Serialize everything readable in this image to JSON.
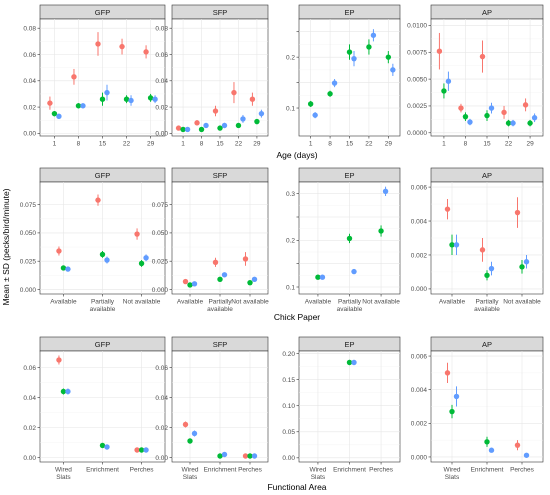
{
  "figure": {
    "y_axis_title": "Mean ± SD (pecks/bird/minute)",
    "colors": {
      "red": "#F8766D",
      "green": "#00BA38",
      "blue": "#619CFF"
    }
  },
  "chart_data": [
    {
      "type": "scatter",
      "row": 0,
      "col": 0,
      "panel": "GFP",
      "categories": [
        "1",
        "8",
        "15",
        "22",
        "29"
      ],
      "xlabel": "Age (days)",
      "ylim": [
        -0.002,
        0.087
      ],
      "yticks": [
        0,
        0.02,
        0.04,
        0.06,
        0.08
      ],
      "yticklabels": [
        "0.00",
        "0.02",
        "0.04",
        "0.06",
        "0.08"
      ],
      "series": [
        {
          "values": [
            0.023,
            0.043,
            0.068,
            0.066,
            0.062
          ],
          "sd": [
            0.005,
            0.006,
            0.009,
            0.006,
            0.005
          ],
          "color": "red"
        },
        {
          "values": [
            0.015,
            0.021,
            0.026,
            0.026,
            0.027
          ],
          "sd": [
            0.002,
            0.002,
            0.005,
            0.003,
            0.003
          ],
          "color": "green"
        },
        {
          "values": [
            0.013,
            0.021,
            0.031,
            0.025,
            0.026
          ],
          "sd": [
            0.002,
            0.002,
            0.006,
            0.004,
            0.003
          ],
          "color": "blue"
        }
      ]
    },
    {
      "type": "scatter",
      "row": 0,
      "col": 1,
      "panel": "SFP",
      "categories": [
        "1",
        "8",
        "15",
        "22",
        "29"
      ],
      "xlabel": "Age (days)",
      "ylim": [
        -0.002,
        0.087
      ],
      "yticks": [
        0,
        0.02,
        0.04,
        0.06,
        0.08
      ],
      "yticklabels": [
        "0.00",
        "0.02",
        "0.04",
        "0.06",
        "0.08"
      ],
      "series": [
        {
          "values": [
            0.004,
            0.008,
            0.017,
            0.031,
            0.026
          ],
          "sd": [
            0.001,
            0.002,
            0.004,
            0.008,
            0.005
          ],
          "color": "red"
        },
        {
          "values": [
            0.003,
            0.003,
            0.004,
            0.006,
            0.009
          ],
          "sd": [
            0.001,
            0.001,
            0.001,
            0.001,
            0.002
          ],
          "color": "green"
        },
        {
          "values": [
            0.003,
            0.006,
            0.006,
            0.011,
            0.015
          ],
          "sd": [
            0.001,
            0.001,
            0.002,
            0.003,
            0.003
          ],
          "color": "blue"
        }
      ]
    },
    {
      "type": "scatter",
      "row": 0,
      "col": 2,
      "panel": "EP",
      "categories": [
        "1",
        "8",
        "15",
        "22",
        "29"
      ],
      "xlabel": "Age (days)",
      "ylim": [
        0.045,
        0.275
      ],
      "yticks": [
        0.1,
        0.15,
        0.2,
        0.25
      ],
      "yticklabels": [
        "0.1",
        "",
        "0.2",
        ""
      ],
      "series": [
        {
          "values": [
            0.108,
            0.128,
            0.21,
            0.22,
            0.2
          ],
          "sd": [
            0.006,
            0.006,
            0.015,
            0.015,
            0.012
          ],
          "color": "green"
        },
        {
          "values": [
            0.086,
            0.149,
            0.197,
            0.243,
            0.175
          ],
          "sd": [
            0.006,
            0.008,
            0.015,
            0.012,
            0.012
          ],
          "color": "blue"
        }
      ]
    },
    {
      "type": "scatter",
      "row": 0,
      "col": 3,
      "panel": "AP",
      "categories": [
        "1",
        "8",
        "15",
        "22",
        "29"
      ],
      "xlabel": "Age (days)",
      "ylim": [
        -0.0003,
        0.0106
      ],
      "yticks": [
        0,
        0.0025,
        0.005,
        0.0075,
        0.01
      ],
      "yticklabels": [
        "0.0000",
        "0.0025",
        "0.0050",
        "0.0075",
        "0.0100"
      ],
      "series": [
        {
          "values": [
            0.0076,
            0.0023,
            0.0071,
            0.0019,
            0.0026
          ],
          "sd": [
            0.0017,
            0.0004,
            0.0015,
            0.0006,
            0.0006
          ],
          "color": "red"
        },
        {
          "values": [
            0.0039,
            0.0015,
            0.0016,
            0.0009,
            0.0009
          ],
          "sd": [
            0.0007,
            0.0004,
            0.0005,
            0.0003,
            0.0003
          ],
          "color": "green"
        },
        {
          "values": [
            0.0048,
            0.001,
            0.0023,
            0.0009,
            0.0014
          ],
          "sd": [
            0.0009,
            0.0003,
            0.0005,
            0.0003,
            0.0004
          ],
          "color": "blue"
        }
      ]
    },
    {
      "type": "scatter",
      "row": 1,
      "col": 0,
      "panel": "GFP",
      "categories": [
        "Available",
        "Partially\navailable",
        "Not available"
      ],
      "xlabel": "Chick Paper",
      "ylim": [
        -0.004,
        0.095
      ],
      "yticks": [
        0,
        0.025,
        0.05,
        0.075
      ],
      "yticklabels": [
        "0.000",
        "0.025",
        "0.050",
        "0.075"
      ],
      "series": [
        {
          "values": [
            0.034,
            0.079,
            0.049
          ],
          "sd": [
            0.004,
            0.005,
            0.005
          ],
          "color": "red"
        },
        {
          "values": [
            0.019,
            0.031,
            0.023
          ],
          "sd": [
            0.002,
            0.003,
            0.003
          ],
          "color": "green"
        },
        {
          "values": [
            0.018,
            0.026,
            0.028
          ],
          "sd": [
            0.002,
            0.003,
            0.003
          ],
          "color": "blue"
        }
      ]
    },
    {
      "type": "scatter",
      "row": 1,
      "col": 1,
      "panel": "SFP",
      "categories": [
        "Available",
        "Partially\navailable",
        "Not available"
      ],
      "xlabel": "Chick Paper",
      "ylim": [
        -0.004,
        0.095
      ],
      "yticks": [
        0,
        0.025,
        0.05,
        0.075
      ],
      "yticklabels": [
        "0.000",
        "0.025",
        "0.050",
        "0.075"
      ],
      "series": [
        {
          "values": [
            0.007,
            0.024,
            0.027
          ],
          "sd": [
            0.002,
            0.004,
            0.006
          ],
          "color": "red"
        },
        {
          "values": [
            0.004,
            0.009,
            0.006
          ],
          "sd": [
            0.001,
            0.002,
            0.001
          ],
          "color": "green"
        },
        {
          "values": [
            0.005,
            0.013,
            0.009
          ],
          "sd": [
            0.001,
            0.002,
            0.002
          ],
          "color": "blue"
        }
      ]
    },
    {
      "type": "scatter",
      "row": 1,
      "col": 2,
      "panel": "EP",
      "categories": [
        "Available",
        "Partially\navailable",
        "Not available"
      ],
      "xlabel": "Chick Paper",
      "ylim": [
        0.085,
        0.325
      ],
      "yticks": [
        0.1,
        0.15,
        0.2,
        0.25,
        0.3
      ],
      "yticklabels": [
        "0.1",
        "",
        "0.2",
        "",
        "0.3"
      ],
      "series": [
        {
          "values": [
            0.121,
            0.204,
            0.22
          ],
          "sd": [
            0.005,
            0.01,
            0.012
          ],
          "color": "green"
        },
        {
          "values": [
            0.121,
            0.133,
            0.305
          ],
          "sd": [
            0.005,
            0.005,
            0.01
          ],
          "color": "blue"
        }
      ]
    },
    {
      "type": "scatter",
      "row": 1,
      "col": 3,
      "panel": "AP",
      "categories": [
        "Available",
        "Partially\navailable",
        "Not available"
      ],
      "xlabel": "Chick Paper",
      "ylim": [
        -0.0003,
        0.0063
      ],
      "yticks": [
        0,
        0.002,
        0.004,
        0.006
      ],
      "yticklabels": [
        "0.000",
        "0.002",
        "0.004",
        "0.006"
      ],
      "series": [
        {
          "values": [
            0.0047,
            0.0023,
            0.0045
          ],
          "sd": [
            0.0006,
            0.0007,
            0.0009
          ],
          "color": "red"
        },
        {
          "values": [
            0.0026,
            0.0008,
            0.0013
          ],
          "sd": [
            0.0006,
            0.0003,
            0.0004
          ],
          "color": "green"
        },
        {
          "values": [
            0.0026,
            0.0012,
            0.0016
          ],
          "sd": [
            0.0006,
            0.0004,
            0.0004
          ],
          "color": "blue"
        }
      ]
    },
    {
      "type": "scatter",
      "row": 2,
      "col": 0,
      "panel": "GFP",
      "categories": [
        "Wired\nSlats",
        "Enrichment",
        "Perches"
      ],
      "xlabel": "Functional Area",
      "ylim": [
        -0.003,
        0.071
      ],
      "yticks": [
        0,
        0.02,
        0.04,
        0.06
      ],
      "yticklabels": [
        "0.00",
        "0.02",
        "0.04",
        "0.06"
      ],
      "series": [
        {
          "values": [
            0.065,
            null,
            0.005
          ],
          "sd": [
            0.003,
            null,
            0.001
          ],
          "color": "red"
        },
        {
          "values": [
            0.044,
            0.008,
            0.005
          ],
          "sd": [
            0.002,
            0.001,
            0.001
          ],
          "color": "green"
        },
        {
          "values": [
            0.044,
            0.007,
            0.005
          ],
          "sd": [
            0.002,
            0.001,
            0.001
          ],
          "color": "blue"
        }
      ]
    },
    {
      "type": "scatter",
      "row": 2,
      "col": 1,
      "panel": "SFP",
      "categories": [
        "Wired\nSlats",
        "Enrichment",
        "Perches"
      ],
      "xlabel": "Functional Area",
      "ylim": [
        -0.003,
        0.071
      ],
      "yticks": [
        0,
        0.02,
        0.04,
        0.06
      ],
      "yticklabels": [
        "0.00",
        "0.02",
        "0.04",
        "0.06"
      ],
      "series": [
        {
          "values": [
            0.022,
            null,
            0.001
          ],
          "sd": [
            0.002,
            null,
            0.0005
          ],
          "color": "red"
        },
        {
          "values": [
            0.011,
            0.001,
            0.001
          ],
          "sd": [
            0.001,
            0.0005,
            0.0005
          ],
          "color": "green"
        },
        {
          "values": [
            0.016,
            0.002,
            0.001
          ],
          "sd": [
            0.002,
            0.0005,
            0.0005
          ],
          "color": "blue"
        }
      ]
    },
    {
      "type": "scatter",
      "row": 2,
      "col": 2,
      "panel": "EP",
      "categories": [
        "Wired\nSlats",
        "Enrichment",
        "Perches"
      ],
      "xlabel": "Functional Area",
      "ylim": [
        -0.008,
        0.205
      ],
      "yticks": [
        0,
        0.05,
        0.1,
        0.15,
        0.2
      ],
      "yticklabels": [
        "0.00",
        "0.05",
        "0.10",
        "0.15",
        "0.20"
      ],
      "series": [
        {
          "values": [
            null,
            0.183,
            null
          ],
          "sd": [
            null,
            0.005,
            null
          ],
          "color": "green"
        },
        {
          "values": [
            null,
            0.183,
            null
          ],
          "sd": [
            null,
            0.005,
            null
          ],
          "color": "blue"
        }
      ]
    },
    {
      "type": "scatter",
      "row": 2,
      "col": 3,
      "panel": "AP",
      "categories": [
        "Wired\nSlats",
        "Enrichment",
        "Perches"
      ],
      "xlabel": "Functional Area",
      "ylim": [
        -0.0003,
        0.0063
      ],
      "yticks": [
        0,
        0.002,
        0.004,
        0.006
      ],
      "yticklabels": [
        "0.000",
        "0.002",
        "0.004",
        "0.006"
      ],
      "series": [
        {
          "values": [
            0.005,
            null,
            0.0007
          ],
          "sd": [
            0.0006,
            null,
            0.0003
          ],
          "color": "red"
        },
        {
          "values": [
            0.0027,
            0.0009,
            null
          ],
          "sd": [
            0.0004,
            0.0003,
            null
          ],
          "color": "green"
        },
        {
          "values": [
            0.0036,
            0.0004,
            0.0001
          ],
          "sd": [
            0.0006,
            0.0001,
            0.0001
          ],
          "color": "blue"
        }
      ]
    }
  ]
}
